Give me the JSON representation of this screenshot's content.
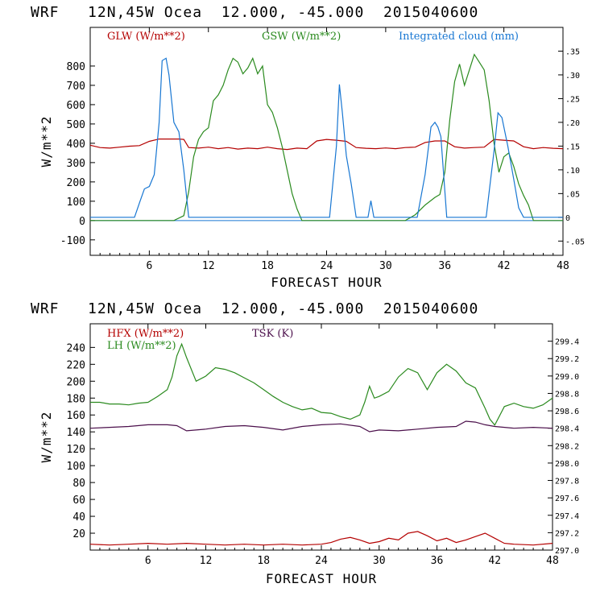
{
  "charts": [
    {
      "title": "WRF   12N,45W Ocea  12.000, -45.000  2015040600"
    },
    {
      "title": "WRF   12N,45W Ocea  12.000, -45.000  2015040600"
    }
  ],
  "chart_data": [
    {
      "type": "line",
      "title": "WRF   12N,45W Ocea  12.000, -45.000  2015040600",
      "xlabel": "FORECAST HOUR",
      "ylabel": "W/m**2",
      "xlim": [
        0,
        48
      ],
      "ylim": [
        -180,
        1000
      ],
      "xticks": [
        6,
        12,
        18,
        24,
        30,
        36,
        42,
        48
      ],
      "yticks": [
        -100,
        0,
        100,
        200,
        300,
        400,
        500,
        600,
        700,
        800
      ],
      "y2lim": [
        -0.08,
        0.4
      ],
      "y2ticks": [
        -0.05,
        0,
        0.05,
        0.1,
        0.15,
        0.2,
        0.25,
        0.3,
        0.35
      ],
      "y2ticklabels": [
        "-.05",
        "0",
        ".05",
        ".10",
        ".15",
        ".20",
        ".25",
        ".30",
        ".35"
      ],
      "grid": false,
      "legend_position": "top",
      "series": [
        {
          "name": "GLW (W/m**2)",
          "color": "#b40000",
          "axis": "left",
          "x": [
            0,
            1,
            2,
            3,
            4,
            5,
            6,
            7,
            8,
            9,
            9.5,
            10,
            11,
            12,
            13,
            14,
            15,
            16,
            17,
            18,
            19,
            20,
            21,
            22,
            23,
            24,
            25,
            26,
            27,
            28,
            29,
            30,
            31,
            32,
            33,
            34,
            35,
            36,
            37,
            38,
            39,
            40,
            41,
            42,
            43,
            44,
            45,
            46,
            47,
            48
          ],
          "y": [
            390,
            378,
            375,
            380,
            385,
            388,
            410,
            422,
            422,
            422,
            420,
            378,
            375,
            380,
            372,
            378,
            370,
            375,
            372,
            380,
            372,
            368,
            375,
            372,
            412,
            420,
            416,
            410,
            378,
            374,
            372,
            376,
            372,
            378,
            380,
            404,
            412,
            412,
            382,
            375,
            378,
            380,
            420,
            416,
            412,
            382,
            372,
            378,
            374,
            372
          ]
        },
        {
          "name": "GSW (W/m**2)",
          "color": "#2a8a1e",
          "axis": "left",
          "x": [
            0,
            5,
            7.5,
            8.5,
            9.5,
            10,
            10.5,
            11,
            11.5,
            12,
            12.5,
            13,
            13.5,
            14,
            14.5,
            15,
            15.5,
            16,
            16.5,
            17,
            17.5,
            18,
            18.5,
            19,
            19.5,
            20,
            20.5,
            21,
            21.5,
            32,
            33,
            34,
            35,
            35.5,
            36,
            36.5,
            37,
            37.5,
            38,
            38.5,
            39,
            39.5,
            40,
            40.5,
            41,
            41.5,
            42,
            42.5,
            43,
            43.5,
            44,
            44.5,
            45,
            48
          ],
          "y": [
            0,
            0,
            0,
            0,
            25,
            150,
            330,
            420,
            460,
            480,
            620,
            650,
            700,
            780,
            840,
            820,
            760,
            790,
            840,
            760,
            800,
            600,
            560,
            480,
            380,
            260,
            140,
            60,
            0,
            0,
            30,
            80,
            120,
            135,
            250,
            520,
            720,
            810,
            700,
            780,
            860,
            820,
            780,
            620,
            400,
            250,
            330,
            350,
            280,
            190,
            130,
            80,
            0,
            0
          ]
        },
        {
          "name": "Integrated cloud (mm)",
          "color": "#1776d2",
          "axis": "right",
          "x": [
            0,
            4.5,
            5,
            5.5,
            6,
            6.5,
            7,
            7.3,
            7.7,
            8,
            8.5,
            9,
            9.5,
            10,
            24.3,
            25,
            25.3,
            25.6,
            26,
            26.5,
            27,
            28.2,
            28.5,
            28.8,
            33.2,
            34,
            34.6,
            35,
            35.3,
            35.6,
            36.2,
            40.2,
            41,
            41.4,
            41.8,
            42.4,
            43,
            43.5,
            44,
            48
          ],
          "y": [
            0,
            0,
            0.03,
            0.06,
            0.065,
            0.09,
            0.2,
            0.33,
            0.335,
            0.3,
            0.2,
            0.18,
            0.1,
            0,
            0,
            0.15,
            0.28,
            0.22,
            0.13,
            0.07,
            0,
            0,
            0.035,
            0,
            0,
            0.09,
            0.19,
            0.2,
            0.19,
            0.17,
            0,
            0,
            0.14,
            0.22,
            0.21,
            0.15,
            0.08,
            0.02,
            0,
            0
          ]
        }
      ]
    },
    {
      "type": "line",
      "title": "WRF   12N,45W Ocea  12.000, -45.000  2015040600",
      "xlabel": "FORECAST HOUR",
      "ylabel": "W/m**2",
      "xlim": [
        0,
        48
      ],
      "ylim": [
        0,
        268
      ],
      "xticks": [
        6,
        12,
        18,
        24,
        30,
        36,
        42,
        48
      ],
      "yticks": [
        20,
        40,
        60,
        80,
        100,
        120,
        140,
        160,
        180,
        200,
        220,
        240
      ],
      "y2lim": [
        297.0,
        299.6
      ],
      "y2ticks": [
        297.0,
        297.2,
        297.4,
        297.6,
        297.8,
        298.0,
        298.2,
        298.4,
        298.6,
        298.8,
        299.0,
        299.2,
        299.4
      ],
      "y2ticklabels": [
        "297.0",
        "297.2",
        "297.4",
        "297.6",
        "297.8",
        "298.0",
        "298.2",
        "298.4",
        "298.6",
        "298.8",
        "299.0",
        "299.2",
        "299.4"
      ],
      "grid": false,
      "legend_position": "top",
      "series": [
        {
          "name": "HFX (W/m**2)",
          "color": "#b40000",
          "axis": "left",
          "x": [
            0,
            2,
            4,
            6,
            8,
            10,
            12,
            14,
            16,
            18,
            20,
            22,
            24,
            25,
            26,
            27,
            28,
            29,
            30,
            31,
            32,
            33,
            34,
            35,
            36,
            37,
            38,
            39,
            40,
            41,
            42,
            43,
            44,
            46,
            48
          ],
          "y": [
            7,
            6,
            7,
            8,
            7,
            8,
            7,
            6,
            7,
            6,
            7,
            6,
            7,
            9,
            13,
            15,
            12,
            8,
            10,
            14,
            12,
            20,
            22,
            17,
            11,
            14,
            9,
            12,
            16,
            20,
            14,
            8,
            7,
            6,
            8
          ]
        },
        {
          "name": "LH (W/m**2)",
          "color": "#2a8a1e",
          "axis": "left",
          "x": [
            0,
            1,
            2,
            3,
            4,
            5,
            6,
            7,
            8,
            8.5,
            9,
            9.5,
            10,
            11,
            12,
            13,
            14,
            15,
            16,
            17,
            18,
            19,
            20,
            21,
            22,
            23,
            24,
            25,
            26,
            27,
            28,
            28.5,
            29,
            29.5,
            30,
            31,
            32,
            33,
            34,
            35,
            36,
            37,
            38,
            39,
            40,
            41,
            41.5,
            42,
            43,
            44,
            45,
            46,
            47,
            48
          ],
          "y": [
            175,
            175,
            173,
            173,
            172,
            174,
            175,
            182,
            190,
            205,
            230,
            244,
            228,
            200,
            206,
            216,
            214,
            210,
            204,
            198,
            190,
            182,
            175,
            170,
            166,
            168,
            163,
            162,
            158,
            155,
            160,
            175,
            194,
            180,
            182,
            188,
            205,
            215,
            210,
            190,
            210,
            220,
            212,
            198,
            192,
            168,
            155,
            148,
            170,
            174,
            170,
            168,
            172,
            180
          ]
        },
        {
          "name": "TSK (K)",
          "color": "#4b0f4b",
          "axis": "right",
          "x": [
            0,
            2,
            4,
            6,
            8,
            9,
            10,
            12,
            14,
            16,
            18,
            20,
            22,
            24,
            26,
            28,
            29,
            30,
            32,
            34,
            36,
            38,
            39,
            40,
            41,
            42,
            44,
            46,
            48
          ],
          "y": [
            298.4,
            298.41,
            298.42,
            298.44,
            298.44,
            298.43,
            298.37,
            298.39,
            298.42,
            298.43,
            298.41,
            298.38,
            298.42,
            298.44,
            298.45,
            298.42,
            298.36,
            298.38,
            298.37,
            298.39,
            298.41,
            298.42,
            298.48,
            298.47,
            298.44,
            298.42,
            298.4,
            298.41,
            298.4
          ]
        }
      ]
    }
  ]
}
